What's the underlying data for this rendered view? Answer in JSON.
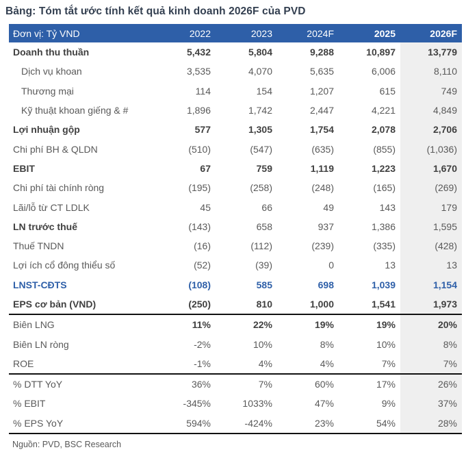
{
  "title": "Bảng: Tóm tắt ước tính kết quả kinh doanh 2026F của PVD",
  "source": "Nguồn: PVD, BSC Research",
  "colors": {
    "header_bg": "#2E5FA8",
    "accent_blue": "#2E5FA8",
    "highlight_column_bg": "#EFEFEF",
    "title_text": "#333F50",
    "separator_line": "#111111"
  },
  "table": {
    "columns": [
      {
        "label": "Đơn vị: Tỷ VND",
        "bold": false
      },
      {
        "label": "2022",
        "bold": false
      },
      {
        "label": "2023",
        "bold": false
      },
      {
        "label": "2024F",
        "bold": false
      },
      {
        "label": "2025",
        "bold": true
      },
      {
        "label": "2026F",
        "bold": true
      }
    ],
    "rows": [
      {
        "label": "Doanh thu thuần",
        "label_bold": true,
        "values_bold": true,
        "values": [
          "5,432",
          "5,804",
          "9,288",
          "10,897",
          "13,779"
        ]
      },
      {
        "label": "Dịch vụ khoan",
        "indent": true,
        "values": [
          "3,535",
          "4,070",
          "5,635",
          "6,006",
          "8,110"
        ]
      },
      {
        "label": "Thương mại",
        "indent": true,
        "values": [
          "114",
          "154",
          "1,207",
          "615",
          "749"
        ]
      },
      {
        "label": "Kỹ thuật khoan giếng & #",
        "indent": true,
        "values": [
          "1,896",
          "1,742",
          "2,447",
          "4,221",
          "4,849"
        ]
      },
      {
        "label": "Lợi nhuận gộp",
        "label_bold": true,
        "values_bold": true,
        "values": [
          "577",
          "1,305",
          "1,754",
          "2,078",
          "2,706"
        ]
      },
      {
        "label": "Chi phí BH & QLDN",
        "values": [
          "(510)",
          "(547)",
          "(635)",
          "(855)",
          "(1,036)"
        ]
      },
      {
        "label": "EBIT",
        "label_bold": true,
        "values_bold": true,
        "values": [
          "67",
          "759",
          "1,119",
          "1,223",
          "1,670"
        ]
      },
      {
        "label": "Chi phí tài chính ròng",
        "values": [
          "(195)",
          "(258)",
          "(248)",
          "(165)",
          "(269)"
        ]
      },
      {
        "label": "Lãi/lỗ từ CT LDLK",
        "values": [
          "45",
          "66",
          "49",
          "143",
          "179"
        ]
      },
      {
        "label": "LN trước thuế",
        "label_bold": true,
        "values": [
          "(143)",
          "658",
          "937",
          "1,386",
          "1,595"
        ]
      },
      {
        "label": "Thuế TNDN",
        "values": [
          "(16)",
          "(112)",
          "(239)",
          "(335)",
          "(428)"
        ]
      },
      {
        "label": "Lợi ích cổ đông thiểu số",
        "values": [
          "(52)",
          "(39)",
          "0",
          "13",
          "13"
        ]
      },
      {
        "label": "LNST-CĐTS",
        "blue": true,
        "label_bold": true,
        "values_bold": true,
        "values": [
          "(108)",
          "585",
          "698",
          "1,039",
          "1,154"
        ]
      },
      {
        "label": "EPS cơ bản (VND)",
        "label_bold": true,
        "values_bold": true,
        "separator_after": true,
        "values": [
          "(250)",
          "810",
          "1,000",
          "1,541",
          "1,973"
        ]
      },
      {
        "label": "Biên LNG",
        "values_bold": true,
        "values": [
          "11%",
          "22%",
          "19%",
          "19%",
          "20%"
        ]
      },
      {
        "label": "Biên LN ròng",
        "values": [
          "-2%",
          "10%",
          "8%",
          "10%",
          "8%"
        ]
      },
      {
        "label": "ROE",
        "separator_after": true,
        "values": [
          "-1%",
          "4%",
          "4%",
          "7%",
          "7%"
        ]
      },
      {
        "label": "% DTT YoY",
        "values": [
          "36%",
          "7%",
          "60%",
          "17%",
          "26%"
        ]
      },
      {
        "label": "% EBIT",
        "values": [
          "-345%",
          "1033%",
          "47%",
          "9%",
          "37%"
        ]
      },
      {
        "label": "% EPS YoY",
        "separator_after": true,
        "values": [
          "594%",
          "-424%",
          "23%",
          "54%",
          "28%"
        ]
      }
    ]
  }
}
